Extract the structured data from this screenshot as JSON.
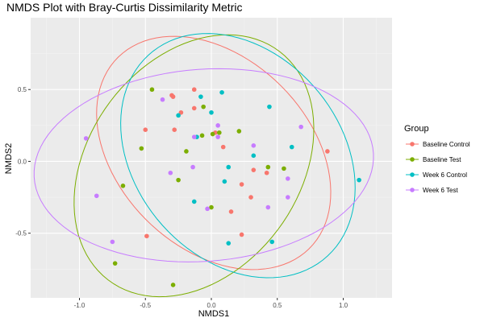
{
  "chart_data": {
    "type": "scatter",
    "title": "NMDS Plot with Bray-Curtis Dissimilarity Metric",
    "xlabel": "NMDS1",
    "ylabel": "NMDS2",
    "xlim": [
      -1.37,
      1.37
    ],
    "ylim": [
      -0.95,
      1.0
    ],
    "x_ticks": [
      -1.0,
      -0.5,
      0.0,
      0.5,
      1.0
    ],
    "x_tick_labels": [
      "-1.0",
      "-0.5",
      "0.0",
      "0.5",
      "1.0"
    ],
    "y_ticks": [
      -0.5,
      0.0,
      0.5
    ],
    "y_tick_labels": [
      "-0.5",
      "0.0",
      "0.5"
    ],
    "grid": true,
    "legend": {
      "title": "Group",
      "position": "right"
    },
    "ellipses": true,
    "series": [
      {
        "name": "Baseline Control",
        "color": "#F8766D",
        "points": [
          [
            -0.5,
            0.22
          ],
          [
            -0.3,
            0.46
          ],
          [
            -0.28,
            0.22
          ],
          [
            -0.23,
            0.34
          ],
          [
            -0.13,
            0.5
          ],
          [
            -0.29,
            0.45
          ],
          [
            -0.13,
            0.37
          ],
          [
            0.03,
            0.2
          ],
          [
            0.09,
            0.1
          ],
          [
            0.23,
            -0.16
          ],
          [
            0.32,
            -0.06
          ],
          [
            0.42,
            -0.08
          ],
          [
            0.3,
            -0.25
          ],
          [
            0.88,
            0.07
          ],
          [
            0.15,
            -0.35
          ],
          [
            0.23,
            -0.51
          ],
          [
            -0.49,
            -0.52
          ]
        ]
      },
      {
        "name": "Baseline Test",
        "color": "#7CAE00",
        "points": [
          [
            -0.45,
            0.5
          ],
          [
            -0.06,
            0.38
          ],
          [
            -0.07,
            0.18
          ],
          [
            0.01,
            0.19
          ],
          [
            0.06,
            0.2
          ],
          [
            0.21,
            0.21
          ],
          [
            -0.19,
            0.07
          ],
          [
            -0.53,
            0.09
          ],
          [
            -0.25,
            -0.13
          ],
          [
            -0.67,
            -0.17
          ],
          [
            0.0,
            -0.32
          ],
          [
            0.43,
            -0.04
          ],
          [
            0.55,
            -0.05
          ],
          [
            -0.73,
            -0.71
          ],
          [
            -0.29,
            -0.86
          ]
        ]
      },
      {
        "name": "Week 6 Control",
        "color": "#00BFC4",
        "points": [
          [
            -0.08,
            0.45
          ],
          [
            0.08,
            0.48
          ],
          [
            0.0,
            0.34
          ],
          [
            -0.25,
            0.32
          ],
          [
            -0.11,
            0.17
          ],
          [
            0.44,
            0.38
          ],
          [
            0.61,
            0.1
          ],
          [
            0.32,
            0.04
          ],
          [
            0.13,
            -0.04
          ],
          [
            0.1,
            -0.14
          ],
          [
            -0.13,
            -0.28
          ],
          [
            0.13,
            -0.57
          ],
          [
            0.46,
            -0.56
          ],
          [
            1.12,
            -0.13
          ]
        ]
      },
      {
        "name": "Week 6 Test",
        "color": "#C77CFF",
        "points": [
          [
            -0.95,
            0.16
          ],
          [
            -0.37,
            0.43
          ],
          [
            -0.13,
            0.17
          ],
          [
            0.05,
            0.25
          ],
          [
            0.05,
            0.17
          ],
          [
            0.32,
            0.11
          ],
          [
            0.68,
            0.24
          ],
          [
            -0.14,
            -0.04
          ],
          [
            -0.31,
            -0.08
          ],
          [
            0.58,
            -0.12
          ],
          [
            -0.87,
            -0.24
          ],
          [
            -0.03,
            -0.33
          ],
          [
            0.43,
            -0.32
          ],
          [
            0.58,
            -0.25
          ],
          [
            -0.75,
            -0.56
          ]
        ]
      }
    ]
  }
}
